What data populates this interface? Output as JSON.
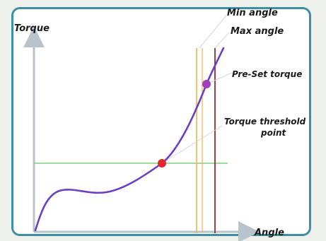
{
  "diagram": {
    "y_axis_label": "Torque",
    "x_axis_label": "Angle",
    "labels": {
      "min_angle": "Min angle",
      "max_angle": "Max angle",
      "preset_torque": "Pre-Set torque",
      "threshold_line1": "Torque threshold",
      "threshold_line2": "point"
    },
    "colors": {
      "frame": "#3d8fa4",
      "axis": "#b9c3cc",
      "curve": "#6b3fc4",
      "threshold_line": "#7ed07a",
      "min_angle_line": "#f3b04a",
      "max_angle_line": "#8b2e34",
      "threshold_point": "#e2282c",
      "preset_point": "#a13fb8",
      "leader": "#cfd8de"
    }
  }
}
